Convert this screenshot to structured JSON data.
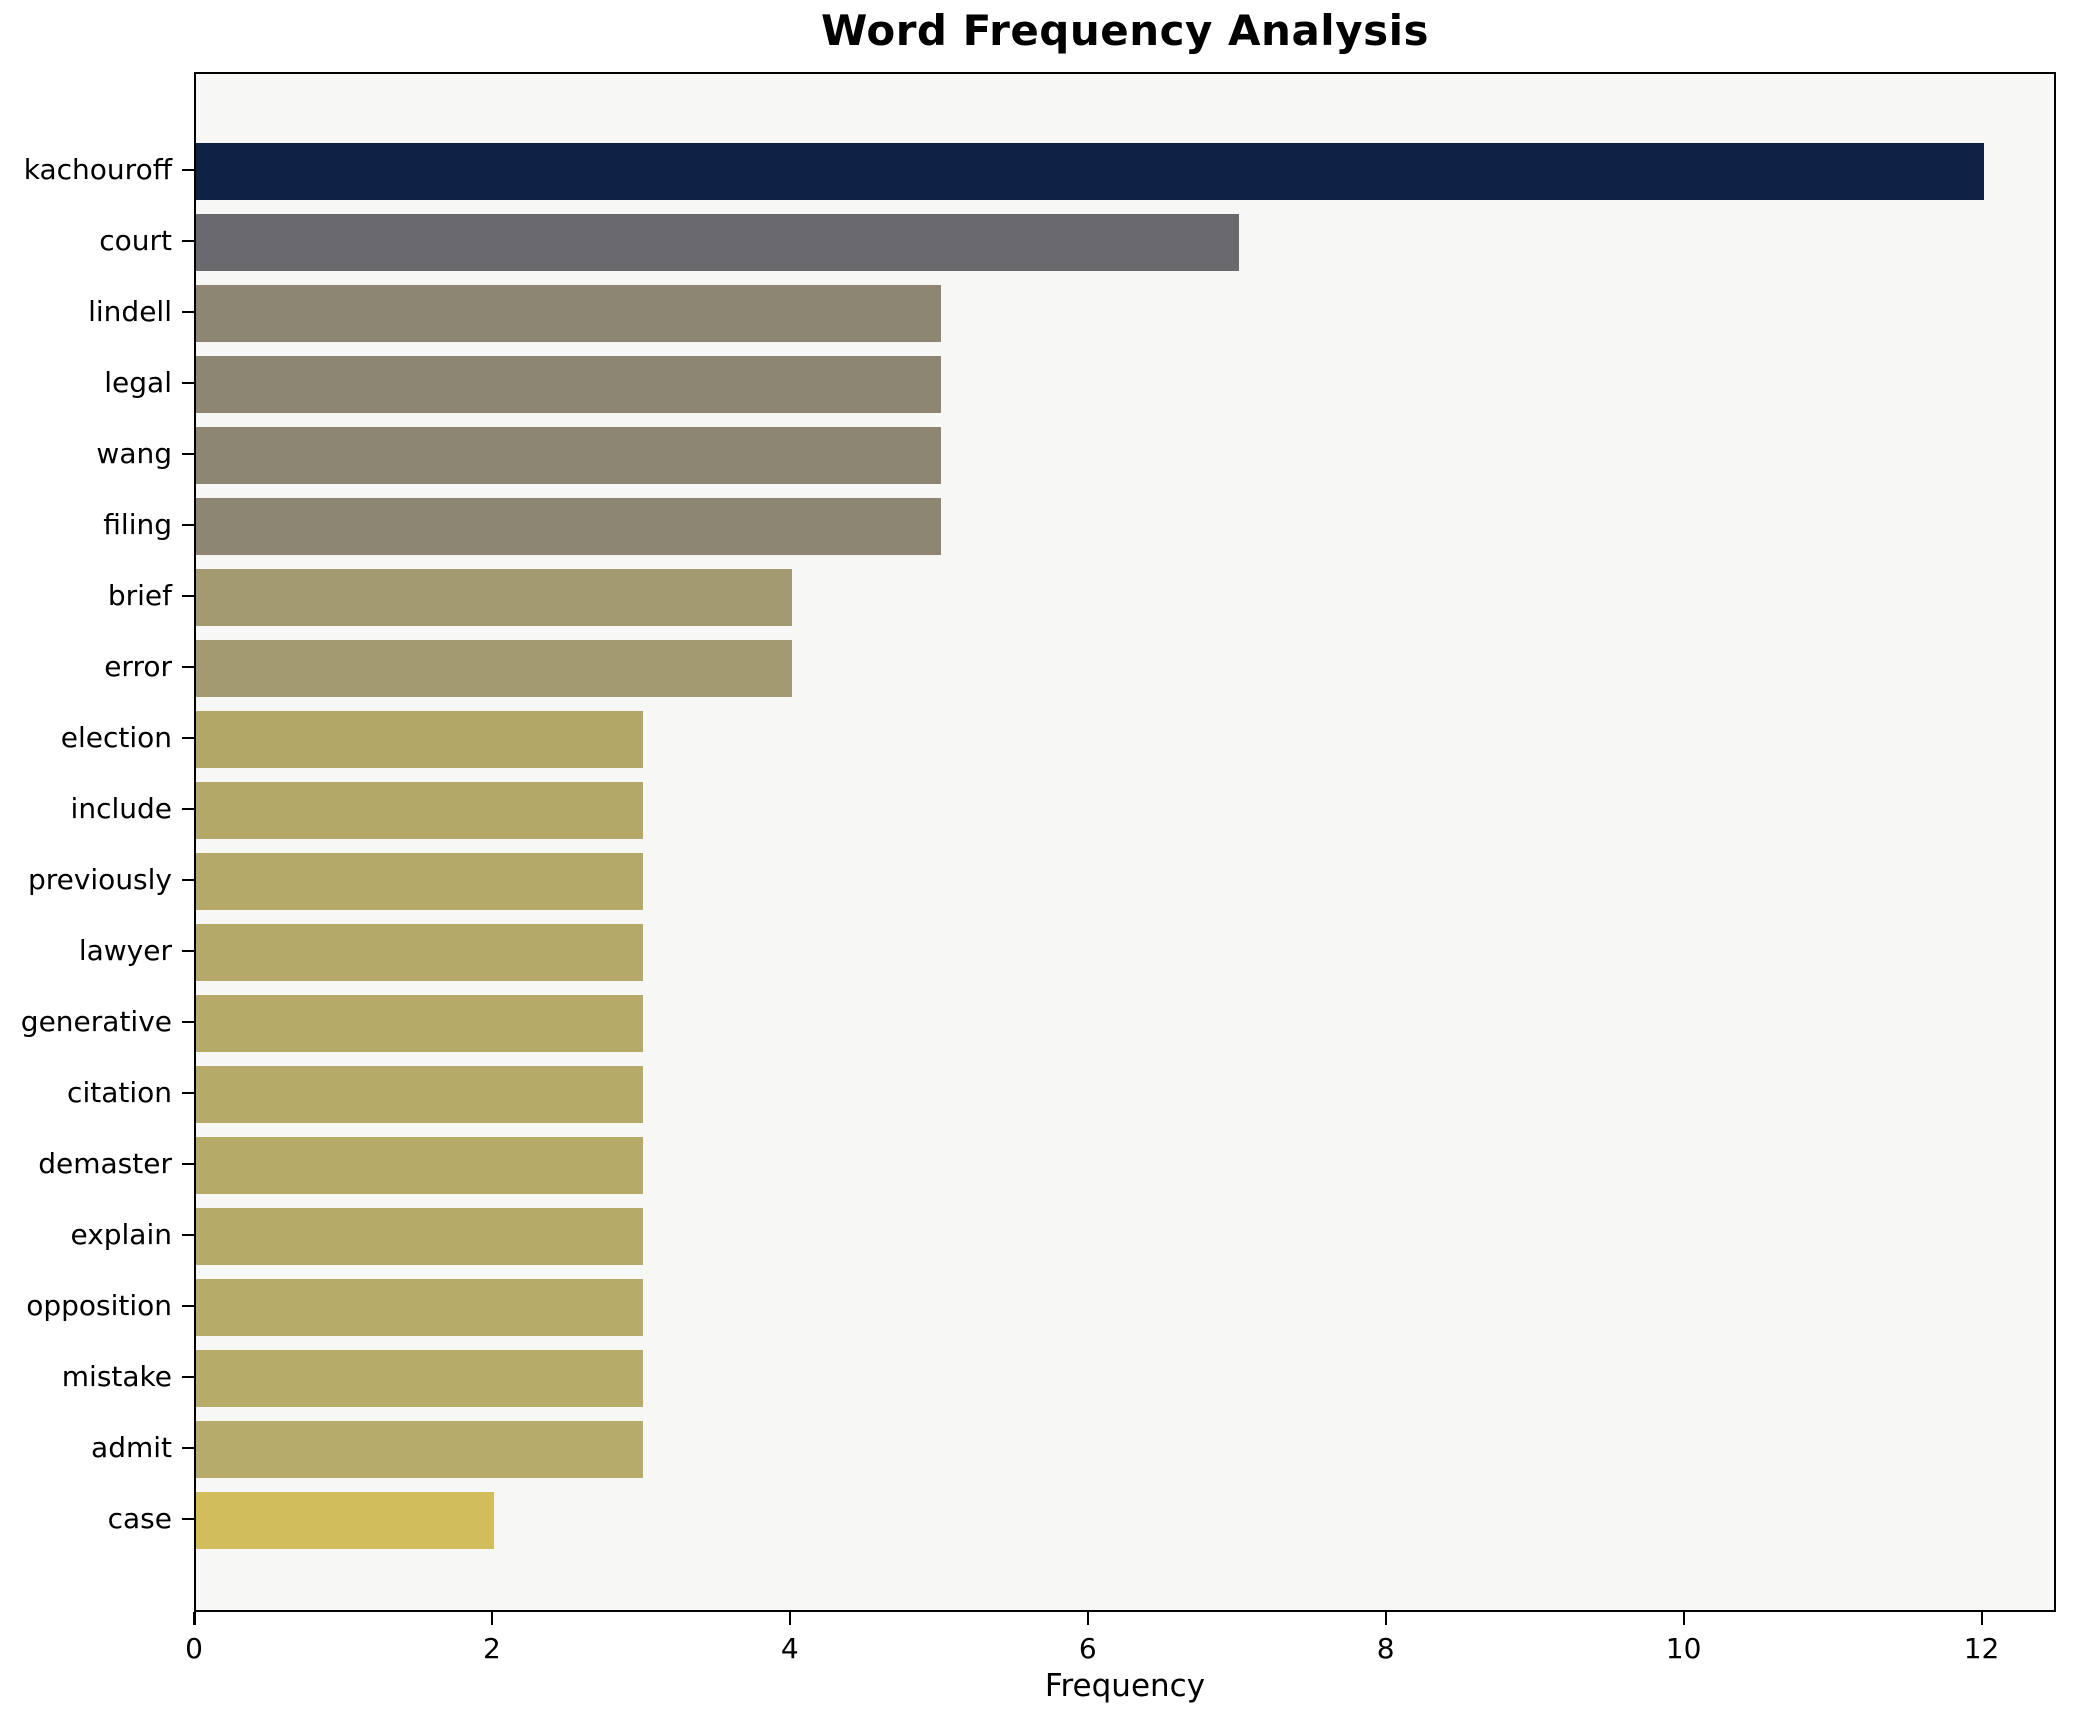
{
  "title": "Word Frequency Analysis",
  "chart_data": {
    "type": "bar",
    "orientation": "horizontal",
    "title": "Word Frequency Analysis",
    "xlabel": "Frequency",
    "ylabel": "",
    "grid": false,
    "legend_position": "none",
    "plot_background": "#f7f7f6",
    "spine_color": "#000000",
    "xlim": [
      0,
      12.5
    ],
    "x_ticks": [
      0,
      2,
      4,
      6,
      8,
      10,
      12
    ],
    "categories": [
      "kachouroff",
      "court",
      "lindell",
      "legal",
      "wang",
      "filing",
      "brief",
      "error",
      "election",
      "include",
      "previously",
      "lawyer",
      "generative",
      "citation",
      "demaster",
      "explain",
      "opposition",
      "mistake",
      "admit",
      "case"
    ],
    "values": [
      12,
      7,
      5,
      5,
      5,
      5,
      4,
      4,
      3,
      3,
      3,
      3,
      3,
      3,
      3,
      3,
      3,
      3,
      3,
      2
    ],
    "bar_colors": [
      "#0e2246",
      "#6a6a6e",
      "#8d8672",
      "#8d8672",
      "#8d8672",
      "#8d8672",
      "#a49a6f",
      "#a49a6f",
      "#b2a767",
      "#b3a867",
      "#b4a968",
      "#b4a968",
      "#b5aa68",
      "#b5aa68",
      "#b5aa68",
      "#b6aa69",
      "#b6ab69",
      "#b7ab6a",
      "#b7ab6b",
      "#d1bd5c"
    ]
  }
}
